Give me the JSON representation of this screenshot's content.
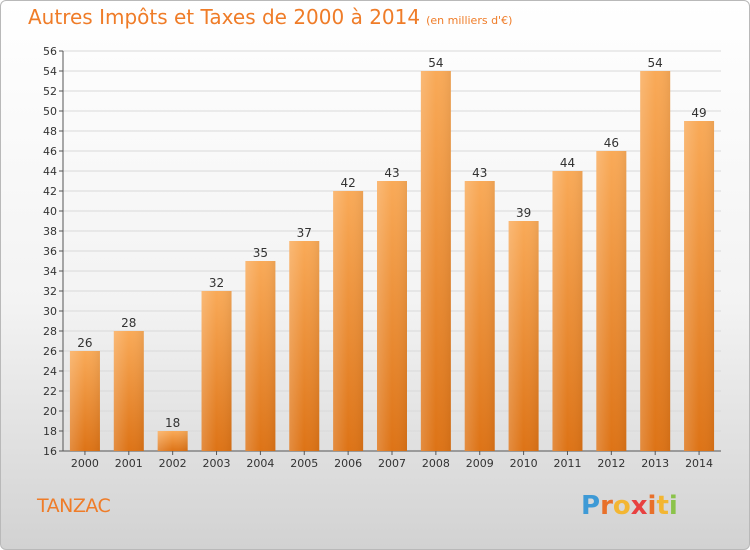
{
  "title": "Autres Impôts et Taxes de 2000 à 2014",
  "subtitle": "(en milliers d'€)",
  "commune": "TANZAC",
  "logo_text": "Proxiti",
  "colors": {
    "title": "#ef7c28",
    "bar_light": "#f8a95a",
    "bar_dark": "#de7418",
    "grid": "#d9d9d9",
    "axis": "#555555"
  },
  "chart_data": {
    "type": "bar",
    "categories": [
      "2000",
      "2001",
      "2002",
      "2003",
      "2004",
      "2005",
      "2006",
      "2007",
      "2008",
      "2009",
      "2010",
      "2011",
      "2012",
      "2013",
      "2014"
    ],
    "values": [
      26,
      28,
      18,
      32,
      35,
      37,
      42,
      43,
      54,
      43,
      39,
      44,
      46,
      54,
      49
    ],
    "data_labels": [
      "26",
      "28",
      "18",
      "32",
      "35",
      "37",
      "42",
      "43",
      "54",
      "43",
      "39",
      "44",
      "46",
      "54",
      "49"
    ],
    "title": "Autres Impôts et Taxes de 2000 à 2014",
    "subtitle": "(en milliers d'€)",
    "xlabel": "",
    "ylabel": "",
    "ylim": [
      16,
      56
    ],
    "yticks": [
      "16",
      "18",
      "20",
      "22",
      "24",
      "26",
      "28",
      "30",
      "32",
      "34",
      "36",
      "38",
      "40",
      "42",
      "44",
      "46",
      "48",
      "50",
      "52",
      "54",
      "56"
    ],
    "grid": true,
    "legend": "none"
  }
}
